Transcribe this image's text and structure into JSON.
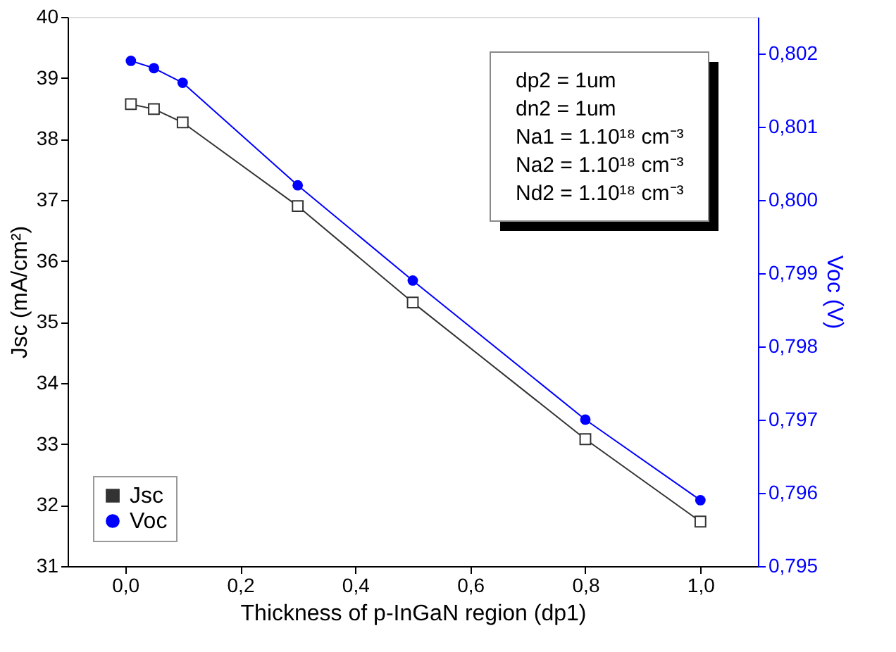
{
  "chart_data": {
    "type": "line",
    "xlabel": "Thickness of p-InGaN region (dp1)",
    "ylabel": "Jsc (mA/cm²)",
    "y2label": "Voc (V)",
    "x": [
      0.01,
      0.05,
      0.1,
      0.3,
      0.5,
      0.8,
      1.0
    ],
    "xlim": [
      -0.1,
      1.1
    ],
    "xticks": [
      {
        "value": 0,
        "label": "0,0"
      },
      {
        "value": 0.2,
        "label": "0,2"
      },
      {
        "value": 0.4,
        "label": "0,4"
      },
      {
        "value": 0.6,
        "label": "0,6"
      },
      {
        "value": 0.8,
        "label": "0,8"
      },
      {
        "value": 1.0,
        "label": "1,0"
      }
    ],
    "ylim": [
      31,
      40
    ],
    "yticks": [
      31,
      32,
      33,
      34,
      35,
      36,
      37,
      38,
      39,
      40
    ],
    "y2lim": [
      0.795,
      0.8025
    ],
    "y2ticks": [
      {
        "value": 0.795,
        "label": "0,795"
      },
      {
        "value": 0.796,
        "label": "0,796"
      },
      {
        "value": 0.797,
        "label": "0,797"
      },
      {
        "value": 0.798,
        "label": "0,798"
      },
      {
        "value": 0.799,
        "label": "0,799"
      },
      {
        "value": 0.8,
        "label": "0,800"
      },
      {
        "value": 0.801,
        "label": "0,801"
      },
      {
        "value": 0.802,
        "label": "0,802"
      }
    ],
    "series": [
      {
        "name": "Jsc",
        "color": "#333333",
        "marker": "square",
        "values": [
          38.57,
          38.49,
          38.27,
          36.9,
          35.32,
          33.08,
          31.73
        ]
      },
      {
        "name": "Voc",
        "color": "#0000ff",
        "marker": "circle",
        "axis": "y2",
        "values": [
          0.8019,
          0.8018,
          0.8016,
          0.8002,
          0.7989,
          0.797,
          0.7959
        ]
      }
    ],
    "annotations": [
      "dp2 = 1um",
      "dn2 = 1um",
      "Na1 = 1.10¹⁸ cm⁻³",
      "Na2 = 1.10¹⁸ cm⁻³",
      "Nd2 = 1.10¹⁸ cm⁻³"
    ],
    "legend": "bottom left",
    "grid": false,
    "line_style": "solid"
  }
}
